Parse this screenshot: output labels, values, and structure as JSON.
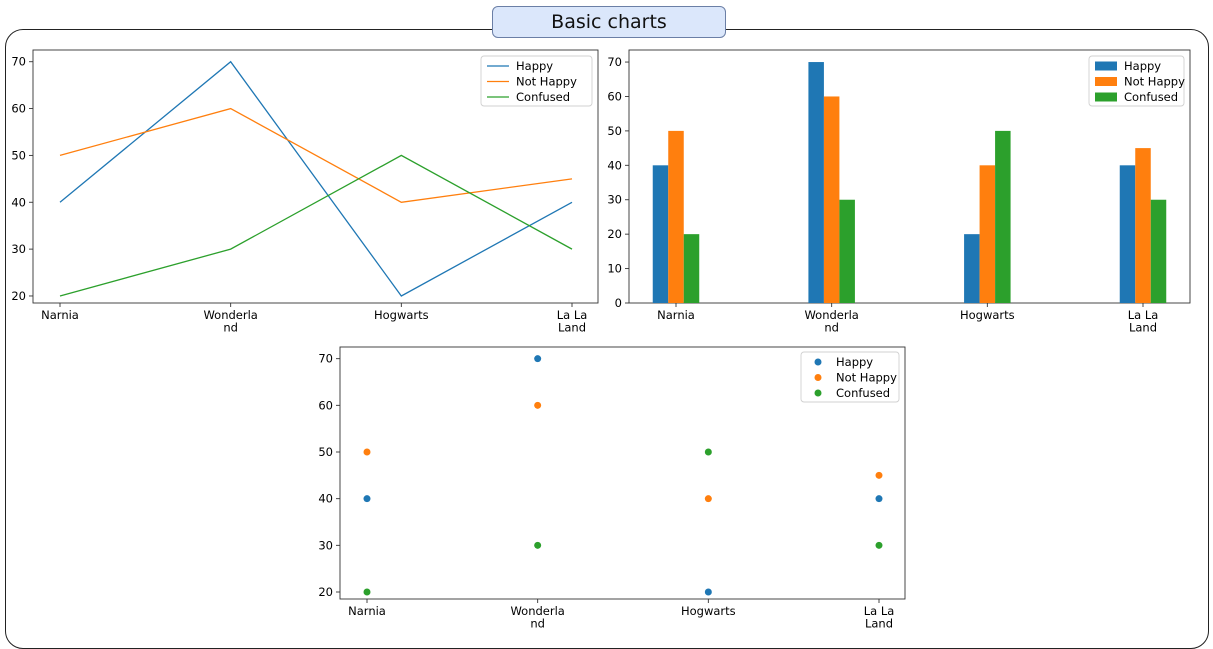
{
  "page": {
    "title": "Basic charts"
  },
  "colors": {
    "Happy": "#1f77b4",
    "Not Happy": "#ff7f0e",
    "Confused": "#2ca02c"
  },
  "chart_data": [
    {
      "type": "line",
      "categories": [
        "Narnia",
        "Wonderla\nnd",
        "Hogwarts",
        "La La\nLand"
      ],
      "series": [
        {
          "name": "Happy",
          "values": [
            40,
            70,
            20,
            40
          ]
        },
        {
          "name": "Not Happy",
          "values": [
            50,
            60,
            40,
            45
          ]
        },
        {
          "name": "Confused",
          "values": [
            20,
            30,
            50,
            30
          ]
        }
      ],
      "yticks": [
        20,
        30,
        40,
        50,
        60,
        70
      ],
      "ylim": [
        18.5,
        72.5
      ],
      "grid": false,
      "legend": "top-right"
    },
    {
      "type": "bar",
      "categories": [
        "Narnia",
        "Wonderla\nnd",
        "Hogwarts",
        "La La\nLand"
      ],
      "series": [
        {
          "name": "Happy",
          "values": [
            40,
            70,
            20,
            40
          ]
        },
        {
          "name": "Not Happy",
          "values": [
            50,
            60,
            40,
            45
          ]
        },
        {
          "name": "Confused",
          "values": [
            20,
            30,
            50,
            30
          ]
        }
      ],
      "yticks": [
        0,
        10,
        20,
        30,
        40,
        50,
        60,
        70
      ],
      "ylim": [
        0,
        73.5
      ],
      "grid": false,
      "legend": "top-right"
    },
    {
      "type": "scatter",
      "categories": [
        "Narnia",
        "Wonderla\nnd",
        "Hogwarts",
        "La La\nLand"
      ],
      "series": [
        {
          "name": "Happy",
          "values": [
            40,
            70,
            20,
            40
          ]
        },
        {
          "name": "Not Happy",
          "values": [
            50,
            60,
            40,
            45
          ]
        },
        {
          "name": "Confused",
          "values": [
            20,
            30,
            50,
            30
          ]
        }
      ],
      "yticks": [
        20,
        30,
        40,
        50,
        60,
        70
      ],
      "ylim": [
        18.5,
        72.5
      ],
      "grid": false,
      "legend": "top-right"
    }
  ]
}
